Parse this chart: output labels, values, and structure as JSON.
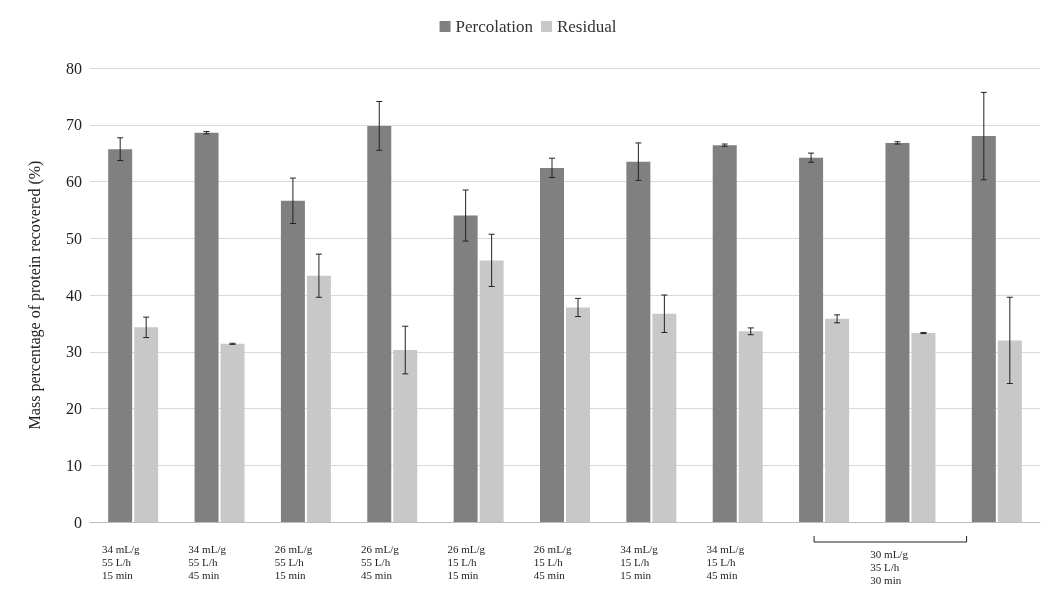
{
  "chart_data": {
    "type": "bar",
    "ylabel": "Mass percentage of protein recovered (%)",
    "categories": [
      "34 mL/g\n55 L/h\n15 min",
      "34 mL/g\n55 L/h\n45 min",
      "26 mL/g\n55 L/h\n15 min",
      "26 mL/g\n55 L/h\n45 min",
      "26 mL/g\n15 L/h\n15 min",
      "26 mL/g\n15 L/h\n45 min",
      "34 mL/g\n15 L/h\n15 min",
      "34 mL/g\n15 L/h\n45 min",
      null,
      null,
      null
    ],
    "series": [
      {
        "name": "Percolation",
        "color": "#808080",
        "values": [
          65.7,
          68.6,
          56.6,
          69.8,
          54,
          62.4,
          63.5,
          66.4,
          64.2,
          66.8,
          68
        ],
        "errors": [
          2,
          0.2,
          4,
          4.3,
          4.5,
          1.7,
          3.3,
          0.2,
          0.8,
          0.2,
          7.7
        ]
      },
      {
        "name": "Residual",
        "color": "#c8c8c8",
        "values": [
          34.3,
          31.4,
          43.4,
          30.3,
          46.1,
          37.8,
          36.7,
          33.6,
          35.8,
          33.3,
          32
        ],
        "errors": [
          1.8,
          0.1,
          3.8,
          4.2,
          4.6,
          1.6,
          3.3,
          0.6,
          0.7,
          0.1,
          7.6
        ]
      }
    ],
    "annotations": [
      "30 mL/g\n35 L/h\n30 min"
    ],
    "ylim": [
      0,
      80
    ],
    "yticks": [
      0,
      10,
      20,
      30,
      40,
      50,
      60,
      70,
      80
    ],
    "grid": "y",
    "legend": "top"
  }
}
